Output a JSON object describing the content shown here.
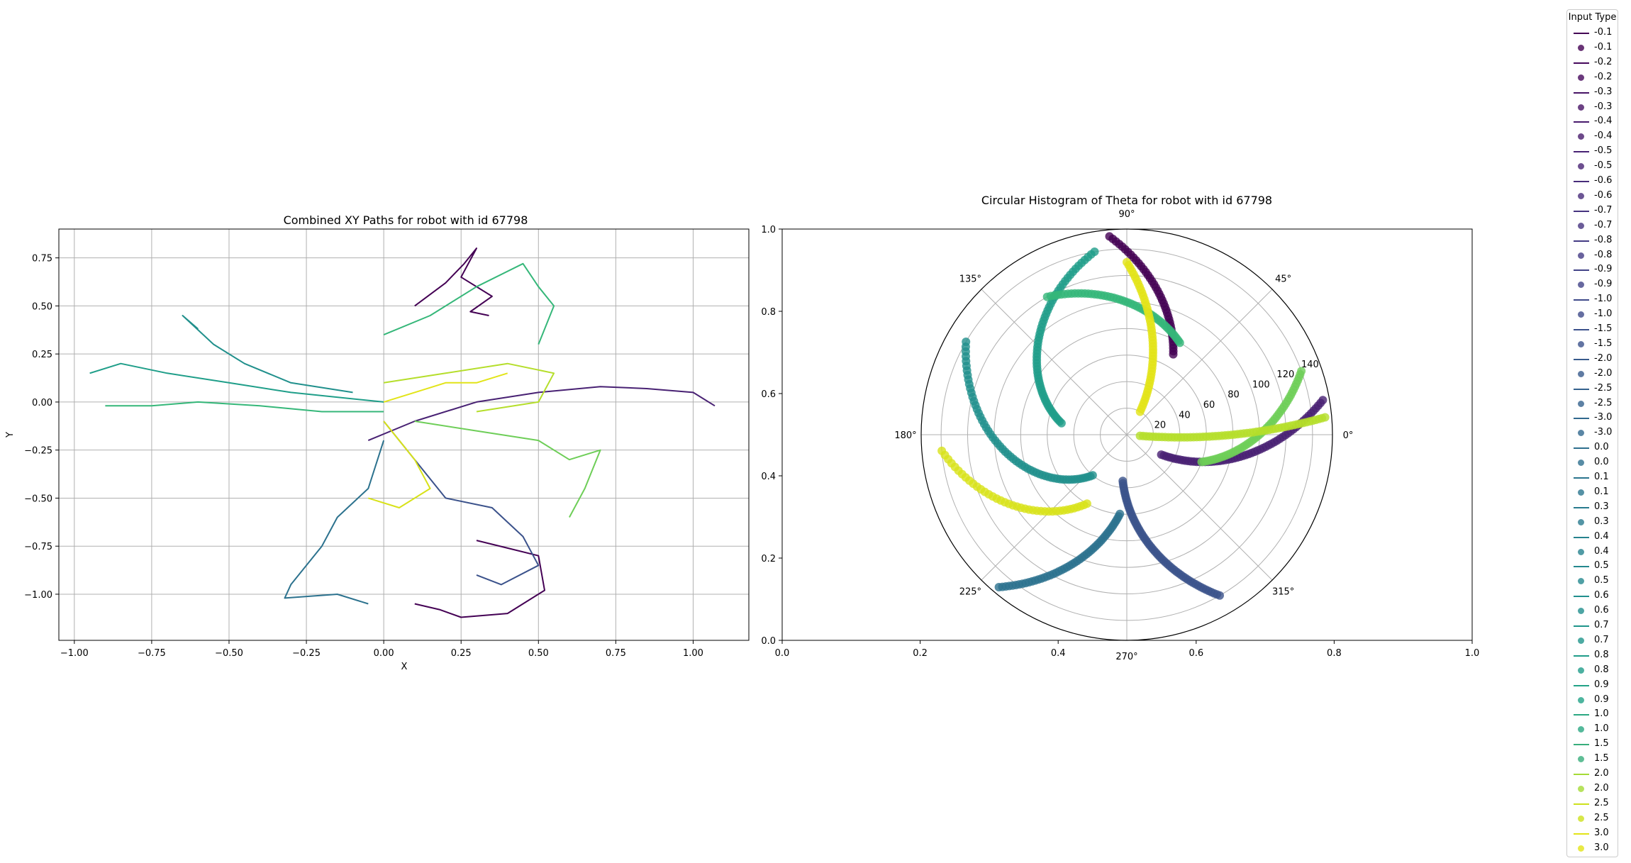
{
  "chart_data": [
    {
      "type": "line",
      "title": "Combined XY Paths for robot with id 67798",
      "xlabel": "X",
      "ylabel": "Y",
      "xlim": [
        -1.05,
        1.18
      ],
      "ylim": [
        -1.24,
        0.9
      ],
      "xticks": [
        -1.0,
        -0.75,
        -0.5,
        -0.25,
        0.0,
        0.25,
        0.5,
        0.75,
        1.0
      ],
      "xtick_labels": [
        "−1.00",
        "−0.75",
        "−0.50",
        "−0.25",
        "0.00",
        "0.25",
        "0.50",
        "0.75",
        "1.00"
      ],
      "yticks": [
        -1.0,
        -0.75,
        -0.5,
        -0.25,
        0.0,
        0.25,
        0.5,
        0.75
      ],
      "ytick_labels": [
        "−1.00",
        "−0.75",
        "−0.50",
        "−0.25",
        "0.00",
        "0.25",
        "0.50",
        "0.75"
      ],
      "grid": true,
      "series": [
        {
          "name": "-0.1",
          "color": "#440154",
          "x": [
            0.1,
            0.2,
            0.26,
            0.3,
            0.25,
            0.35,
            0.28,
            0.34
          ],
          "y": [
            0.5,
            0.62,
            0.72,
            0.8,
            0.65,
            0.55,
            0.47,
            0.45
          ]
        },
        {
          "name": "-0.1",
          "color": "#440154",
          "x": [
            0.3,
            0.4,
            0.5,
            0.52,
            0.45,
            0.4,
            0.25,
            0.18,
            0.1
          ],
          "y": [
            -0.72,
            -0.76,
            -0.8,
            -0.98,
            -1.05,
            -1.1,
            -1.12,
            -1.08,
            -1.05
          ]
        },
        {
          "name": "-0.2",
          "color": "#482173",
          "x": [
            -0.05,
            0.1,
            0.3,
            0.5,
            0.7,
            0.85,
            1.0,
            1.07
          ],
          "y": [
            -0.2,
            -0.1,
            0.0,
            0.05,
            0.08,
            0.07,
            0.05,
            -0.02
          ]
        },
        {
          "name": "-0.5",
          "color": "#3b528b",
          "x": [
            0.0,
            0.1,
            0.2,
            0.35,
            0.45,
            0.5,
            0.38,
            0.3
          ],
          "y": [
            -0.1,
            -0.3,
            -0.5,
            -0.55,
            -0.7,
            -0.85,
            -0.95,
            -0.9
          ]
        },
        {
          "name": "-0.9",
          "color": "#2c728e",
          "x": [
            0.0,
            -0.05,
            -0.15,
            -0.2,
            -0.3,
            -0.32,
            -0.15,
            -0.05
          ],
          "y": [
            -0.2,
            -0.45,
            -0.6,
            -0.75,
            -0.95,
            -1.02,
            -1.0,
            -1.05
          ]
        },
        {
          "name": "-2.0",
          "color": "#21908c",
          "x": [
            -0.1,
            -0.3,
            -0.45,
            -0.55,
            -0.65,
            -0.6
          ],
          "y": [
            0.05,
            0.1,
            0.2,
            0.3,
            0.45,
            0.38
          ]
        },
        {
          "name": "0.1",
          "color": "#1f9e89",
          "x": [
            0.0,
            -0.3,
            -0.5,
            -0.7,
            -0.85,
            -0.95
          ],
          "y": [
            0.0,
            0.05,
            0.1,
            0.15,
            0.2,
            0.15
          ]
        },
        {
          "name": "0.5",
          "color": "#35b779",
          "x": [
            0.0,
            0.15,
            0.3,
            0.45,
            0.5,
            0.55,
            0.5
          ],
          "y": [
            0.35,
            0.45,
            0.6,
            0.72,
            0.6,
            0.5,
            0.3
          ]
        },
        {
          "name": "0.5",
          "color": "#35b779",
          "x": [
            0.0,
            -0.2,
            -0.4,
            -0.6,
            -0.75,
            -0.9
          ],
          "y": [
            -0.05,
            -0.05,
            -0.02,
            0.0,
            -0.02,
            -0.02
          ]
        },
        {
          "name": "0.9",
          "color": "#6ece58",
          "x": [
            0.1,
            0.3,
            0.5,
            0.6,
            0.7,
            0.65,
            0.6
          ],
          "y": [
            -0.1,
            -0.15,
            -0.2,
            -0.3,
            -0.25,
            -0.45,
            -0.6
          ]
        },
        {
          "name": "1.5",
          "color": "#b5de2b",
          "x": [
            0.0,
            0.2,
            0.4,
            0.55,
            0.5,
            0.3
          ],
          "y": [
            0.1,
            0.15,
            0.2,
            0.15,
            0.0,
            -0.05
          ]
        },
        {
          "name": "2.5",
          "color": "#d8e219",
          "x": [
            0.0,
            0.1,
            0.15,
            0.05,
            -0.05
          ],
          "y": [
            -0.1,
            -0.3,
            -0.45,
            -0.55,
            -0.5
          ]
        },
        {
          "name": "3.0",
          "color": "#e2e418",
          "x": [
            0.0,
            0.1,
            0.2,
            0.3,
            0.4
          ],
          "y": [
            0.0,
            0.05,
            0.1,
            0.1,
            0.15
          ]
        }
      ]
    },
    {
      "type": "scatter",
      "title": "Circular Histogram of Theta for robot with id 67798",
      "xlim": [
        0.0,
        1.0
      ],
      "ylim": [
        0.0,
        1.0
      ],
      "xticks": [
        0.0,
        0.2,
        0.4,
        0.6,
        0.8,
        1.0
      ],
      "xtick_labels": [
        "0.0",
        "0.2",
        "0.4",
        "0.6",
        "0.8",
        "1.0"
      ],
      "yticks": [
        0.0,
        0.2,
        0.4,
        0.6,
        0.8,
        1.0
      ],
      "ytick_labels": [
        "0.0",
        "0.2",
        "0.4",
        "0.6",
        "0.8",
        "1.0"
      ],
      "polar_angle_labels": [
        "0°",
        "45°",
        "90°",
        "135°",
        "180°",
        "225°",
        "270°",
        "315°"
      ],
      "polar_radial_ticks": [
        20,
        40,
        60,
        80,
        100,
        120,
        140
      ],
      "polar_rmax": 155,
      "polar_radial_label_angle": 22.5,
      "series": [
        {
          "name": "-0.1",
          "color": "#440154",
          "start_angle": 95,
          "end_angle": 60,
          "r_start": 150,
          "r_end": 70,
          "n": 40
        },
        {
          "name": "-0.2",
          "color": "#482173",
          "start_angle": 10,
          "end_angle": -30,
          "r_start": 150,
          "r_end": 30,
          "n": 60
        },
        {
          "name": "-0.5",
          "color": "#3b528b",
          "start_angle": -60,
          "end_angle": -95,
          "r_start": 140,
          "r_end": 35,
          "n": 60
        },
        {
          "name": "-0.9",
          "color": "#2c728e",
          "start_angle": 230,
          "end_angle": 265,
          "r_start": 150,
          "r_end": 60,
          "n": 50
        },
        {
          "name": "-2.0",
          "color": "#21908c",
          "start_angle": 150,
          "end_angle": 230,
          "r_start": 140,
          "r_end": 40,
          "n": 60
        },
        {
          "name": "0.1",
          "color": "#1f9e89",
          "start_angle": 100,
          "end_angle": 170,
          "r_start": 140,
          "r_end": 50,
          "n": 60
        },
        {
          "name": "0.5",
          "color": "#35b779",
          "start_angle": 120,
          "end_angle": 60,
          "r_start": 120,
          "r_end": 80,
          "n": 50
        },
        {
          "name": "0.9",
          "color": "#6ece58",
          "start_angle": 20,
          "end_angle": -20,
          "r_start": 140,
          "r_end": 60,
          "n": 50
        },
        {
          "name": "1.5",
          "color": "#b5de2b",
          "start_angle": 5,
          "end_angle": -5,
          "r_start": 150,
          "r_end": 10,
          "n": 60
        },
        {
          "name": "2.5",
          "color": "#d8e219",
          "start_angle": 185,
          "end_angle": 240,
          "r_start": 140,
          "r_end": 60,
          "n": 40
        },
        {
          "name": "3.0",
          "color": "#e2e418",
          "start_angle": 90,
          "end_angle": 60,
          "r_start": 130,
          "r_end": 20,
          "n": 50
        }
      ]
    }
  ],
  "legend": {
    "title": "Input Type",
    "entries": [
      {
        "label": "-0.1",
        "kind": "line",
        "color": "#440154"
      },
      {
        "label": "-0.1",
        "kind": "dot",
        "color": "#440154"
      },
      {
        "label": "-0.2",
        "kind": "line",
        "color": "#46085c"
      },
      {
        "label": "-0.2",
        "kind": "dot",
        "color": "#46085c"
      },
      {
        "label": "-0.3",
        "kind": "line",
        "color": "#471365"
      },
      {
        "label": "-0.3",
        "kind": "dot",
        "color": "#471365"
      },
      {
        "label": "-0.4",
        "kind": "line",
        "color": "#481b6d"
      },
      {
        "label": "-0.4",
        "kind": "dot",
        "color": "#481b6d"
      },
      {
        "label": "-0.5",
        "kind": "line",
        "color": "#482374"
      },
      {
        "label": "-0.5",
        "kind": "dot",
        "color": "#482374"
      },
      {
        "label": "-0.6",
        "kind": "line",
        "color": "#472c7a"
      },
      {
        "label": "-0.6",
        "kind": "dot",
        "color": "#472c7a"
      },
      {
        "label": "-0.7",
        "kind": "line",
        "color": "#46337f"
      },
      {
        "label": "-0.7",
        "kind": "dot",
        "color": "#46337f"
      },
      {
        "label": "-0.8",
        "kind": "line",
        "color": "#443b84"
      },
      {
        "label": "-0.8",
        "kind": "dot",
        "color": "#443b84"
      },
      {
        "label": "-0.9",
        "kind": "line",
        "color": "#414287"
      },
      {
        "label": "-0.9",
        "kind": "dot",
        "color": "#414287"
      },
      {
        "label": "-1.0",
        "kind": "line",
        "color": "#3e4a89"
      },
      {
        "label": "-1.0",
        "kind": "dot",
        "color": "#3e4a89"
      },
      {
        "label": "-1.5",
        "kind": "line",
        "color": "#3b518b"
      },
      {
        "label": "-1.5",
        "kind": "dot",
        "color": "#3b518b"
      },
      {
        "label": "-2.0",
        "kind": "line",
        "color": "#375a8c"
      },
      {
        "label": "-2.0",
        "kind": "dot",
        "color": "#375a8c"
      },
      {
        "label": "-2.5",
        "kind": "line",
        "color": "#34618d"
      },
      {
        "label": "-2.5",
        "kind": "dot",
        "color": "#34618d"
      },
      {
        "label": "-3.0",
        "kind": "line",
        "color": "#31688e"
      },
      {
        "label": "-3.0",
        "kind": "dot",
        "color": "#31688e"
      },
      {
        "label": "0.0",
        "kind": "line",
        "color": "#2e6f8e"
      },
      {
        "label": "0.0",
        "kind": "dot",
        "color": "#2e6f8e"
      },
      {
        "label": "0.1",
        "kind": "line",
        "color": "#2b758e"
      },
      {
        "label": "0.1",
        "kind": "dot",
        "color": "#2b758e"
      },
      {
        "label": "0.3",
        "kind": "line",
        "color": "#297b8e"
      },
      {
        "label": "0.3",
        "kind": "dot",
        "color": "#297b8e"
      },
      {
        "label": "0.4",
        "kind": "line",
        "color": "#26828e"
      },
      {
        "label": "0.4",
        "kind": "dot",
        "color": "#26828e"
      },
      {
        "label": "0.5",
        "kind": "line",
        "color": "#24888e"
      },
      {
        "label": "0.5",
        "kind": "dot",
        "color": "#24888e"
      },
      {
        "label": "0.6",
        "kind": "line",
        "color": "#218f8d"
      },
      {
        "label": "0.6",
        "kind": "dot",
        "color": "#218f8d"
      },
      {
        "label": "0.7",
        "kind": "line",
        "color": "#1f958b"
      },
      {
        "label": "0.7",
        "kind": "dot",
        "color": "#1f958b"
      },
      {
        "label": "0.8",
        "kind": "line",
        "color": "#1f9c89"
      },
      {
        "label": "0.8",
        "kind": "dot",
        "color": "#1f9c89"
      },
      {
        "label": "0.9",
        "kind": "line",
        "color": "#22a287"
      },
      {
        "label": "0.9",
        "kind": "dot",
        "color": "#22a287"
      },
      {
        "label": "1.0",
        "kind": "line",
        "color": "#2ba882"
      },
      {
        "label": "1.0",
        "kind": "dot",
        "color": "#2ba882"
      },
      {
        "label": "1.5",
        "kind": "line",
        "color": "#38ae7c"
      },
      {
        "label": "1.5",
        "kind": "dot",
        "color": "#38ae7c"
      },
      {
        "label": "2.0",
        "kind": "line",
        "color": "#a5db36"
      },
      {
        "label": "2.0",
        "kind": "dot",
        "color": "#a5db36"
      },
      {
        "label": "2.5",
        "kind": "line",
        "color": "#cde11d"
      },
      {
        "label": "2.5",
        "kind": "dot",
        "color": "#cde11d"
      },
      {
        "label": "3.0",
        "kind": "line",
        "color": "#e2e418"
      },
      {
        "label": "3.0",
        "kind": "dot",
        "color": "#e2e418"
      }
    ]
  }
}
